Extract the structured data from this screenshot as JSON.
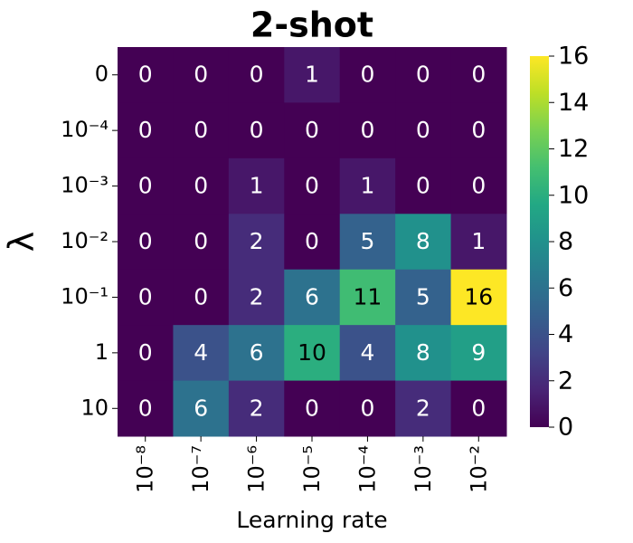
{
  "chart_data": {
    "type": "heatmap",
    "title": "2-shot",
    "x_label": "Learning rate",
    "y_label": "λ",
    "x_categories": [
      "10⁻⁸",
      "10⁻⁷",
      "10⁻⁶",
      "10⁻⁵",
      "10⁻⁴",
      "10⁻³",
      "10⁻²"
    ],
    "y_categories": [
      "0",
      "10⁻⁴",
      "10⁻³",
      "10⁻²",
      "10⁻¹",
      "1",
      "10"
    ],
    "values": [
      [
        0,
        0,
        0,
        1,
        0,
        0,
        0
      ],
      [
        0,
        0,
        0,
        0,
        0,
        0,
        0
      ],
      [
        0,
        0,
        1,
        0,
        1,
        0,
        0
      ],
      [
        0,
        0,
        2,
        0,
        5,
        8,
        1
      ],
      [
        0,
        0,
        2,
        6,
        11,
        5,
        16
      ],
      [
        0,
        4,
        6,
        10,
        4,
        8,
        9
      ],
      [
        0,
        6,
        2,
        0,
        0,
        2,
        0
      ]
    ],
    "colormap": "viridis",
    "zlim": [
      0,
      16
    ],
    "zticks": [
      0,
      2,
      4,
      6,
      8,
      10,
      12,
      14,
      16
    ]
  }
}
